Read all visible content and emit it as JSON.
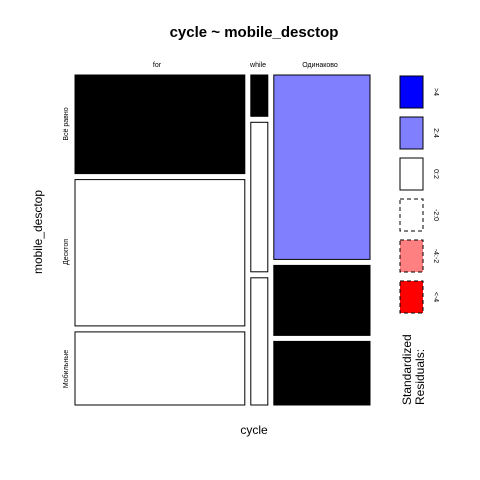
{
  "chart_data": {
    "type": "mosaic",
    "title": "cycle ~ mobile_desctop",
    "xlabel": "cycle",
    "ylabel": "mobile_desctop",
    "x_categories": [
      "for",
      "while",
      "Одинаково"
    ],
    "y_categories": [
      "Всё равно",
      "Десктоп",
      "Мобильные"
    ],
    "x_proportions": [
      0.6,
      0.06,
      0.34
    ],
    "cells": [
      {
        "x": "for",
        "y": "Всё равно",
        "share": 0.31,
        "residual_class": "<-2:0"
      },
      {
        "x": "for",
        "y": "Десктоп",
        "share": 0.46,
        "residual_class": "0:2"
      },
      {
        "x": "for",
        "y": "Мобильные",
        "share": 0.23,
        "residual_class": "0:2"
      },
      {
        "x": "while",
        "y": "Всё равно",
        "share": 0.13,
        "residual_class": "<-2:0"
      },
      {
        "x": "while",
        "y": "Десктоп",
        "share": 0.47,
        "residual_class": "0:2"
      },
      {
        "x": "while",
        "y": "Мобильные",
        "share": 0.4,
        "residual_class": "0:2"
      },
      {
        "x": "Одинаково",
        "y": "Всё равно",
        "share": 0.58,
        "residual_class": "2:4"
      },
      {
        "x": "Одинаково",
        "y": "Десктоп",
        "share": 0.22,
        "residual_class": "<-2:0"
      },
      {
        "x": "Одинаково",
        "y": "Мобильные",
        "share": 0.2,
        "residual_class": "<-2:0"
      }
    ],
    "legend": {
      "title": "Standardized Residuals:",
      "placement": "right",
      "items": [
        {
          "label": ">4",
          "color": "#0000ff",
          "dashed": false
        },
        {
          "label": "2:4",
          "color": "#8080ff",
          "dashed": false
        },
        {
          "label": "0:2",
          "color": "#ffffff",
          "dashed": false
        },
        {
          "label": "-2:0",
          "color": "#ffffff",
          "dashed": true
        },
        {
          "label": "-4:-2",
          "color": "#ff8080",
          "dashed": true
        },
        {
          "label": "<-4",
          "color": "#ff0000",
          "dashed": true
        }
      ]
    }
  }
}
